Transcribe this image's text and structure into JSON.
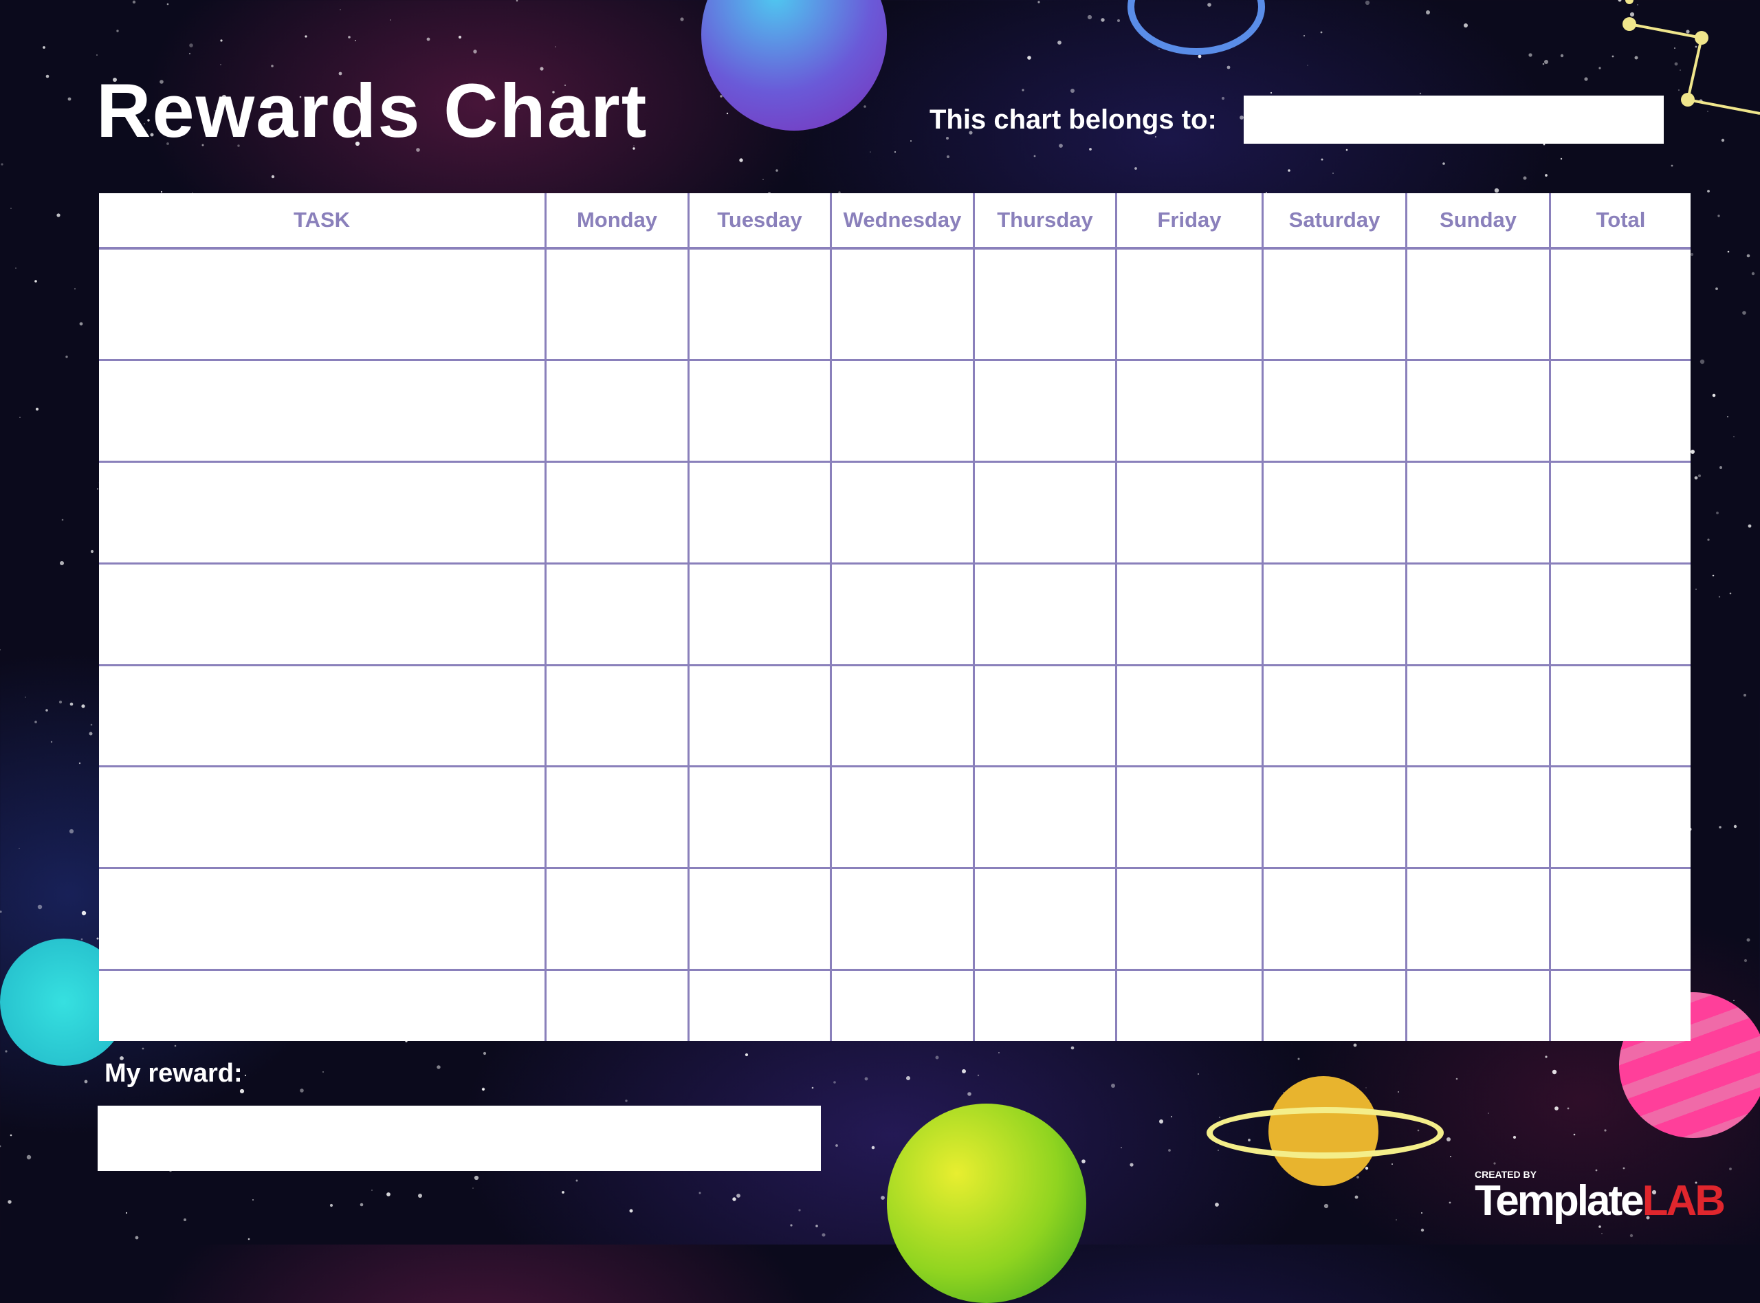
{
  "title": "Rewards Chart",
  "belongs_label": "This chart belongs to:",
  "belongs_value": "",
  "table": {
    "headers": [
      "TASK",
      "Monday",
      "Tuesday",
      "Wednesday",
      "Thursday",
      "Friday",
      "Saturday",
      "Sunday",
      "Total"
    ],
    "row_count": 8
  },
  "reward_label": "My reward:",
  "reward_value": "",
  "logo": {
    "created_by": "CREATED BY",
    "brand_a": "Template",
    "brand_b": "LAB"
  },
  "colors": {
    "grid": "#8a80bb",
    "background": "#0b0a1c",
    "logo_red": "#e0262d"
  }
}
